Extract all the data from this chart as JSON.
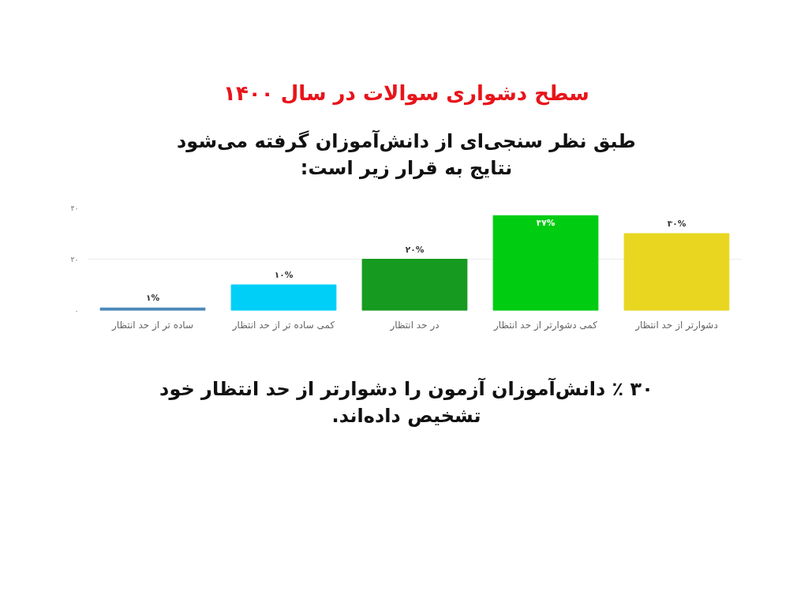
{
  "chart_data": {
    "type": "bar",
    "title": "سطح دشواری سوالات در سال ۱۴۰۰",
    "subtitle": "طبق نظر سنجی‌ای از دانش‌آموزان گرفته می‌شود نتایج به قرار زیر است:",
    "categories": [
      "ساده تر از حد انتظار",
      "کمی ساده تر از حد انتظار",
      "در حد انتظار",
      "کمی دشوارتر از حد انتظار",
      "دشوارتر از حد انتظار"
    ],
    "values": [
      1,
      10,
      20,
      37,
      30
    ],
    "colors": [
      "#4a86b8",
      "#00cff7",
      "#169a1f",
      "#00cc12",
      "#e8d620"
    ],
    "value_labels": [
      "۱%",
      "۱۰%",
      "۲۰%",
      "۳۷%",
      "۳۰%"
    ],
    "ylim": [
      0,
      40
    ],
    "yticks": [
      {
        "value": 0,
        "label": "۰"
      },
      {
        "value": 20,
        "label": "۲۰"
      },
      {
        "value": 40,
        "label": "۴۰"
      }
    ],
    "grid": "y",
    "annotations": [
      "۳۰ ٪ دانش‌آموزان آزمون را دشوارتر از حد انتظار خود تشخیص داده‌اند."
    ]
  }
}
